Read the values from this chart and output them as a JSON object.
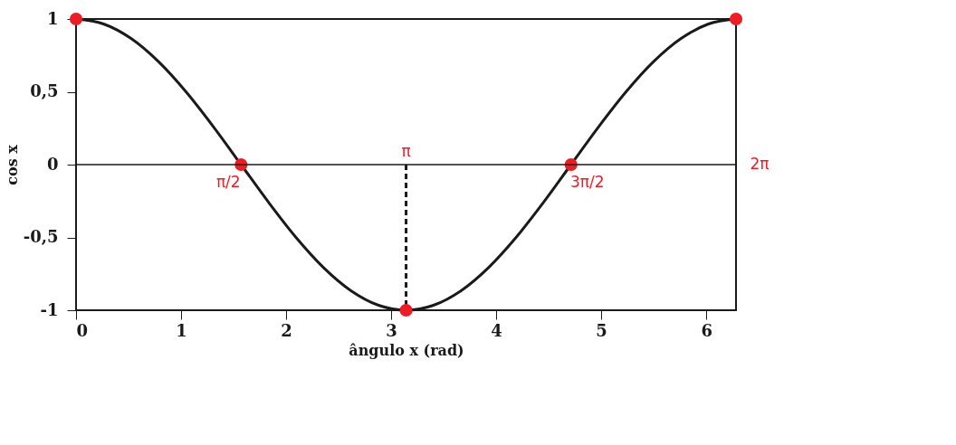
{
  "chart_data": {
    "type": "line",
    "xlabel": "ângulo x (rad)",
    "ylabel": "cos x",
    "xlim": [
      0,
      6.283
    ],
    "xticks": [
      0,
      1,
      2,
      3,
      4,
      5,
      6
    ],
    "ylim": [
      -1,
      1
    ],
    "yticks": [
      -1,
      {
        "value": -0.5,
        "label": "-0,5"
      },
      0,
      {
        "value": 0.5,
        "label": "0,5"
      },
      1
    ],
    "grid": false,
    "series": [
      {
        "color": "#1a1a1a",
        "x": [
          0,
          0.262,
          0.524,
          0.785,
          1.047,
          1.309,
          1.571,
          1.833,
          2.094,
          2.356,
          2.618,
          2.88,
          3.142,
          3.403,
          3.665,
          3.927,
          4.189,
          4.451,
          4.712,
          4.974,
          5.236,
          5.498,
          5.76,
          6.021,
          6.283
        ],
        "values": [
          1,
          0.966,
          0.866,
          0.707,
          0.5,
          0.259,
          0,
          -0.259,
          -0.5,
          -0.707,
          -0.866,
          -0.966,
          -1,
          -0.966,
          -0.866,
          -0.707,
          -0.5,
          -0.259,
          0,
          0.259,
          0.5,
          0.707,
          0.866,
          0.966,
          1
        ]
      },
      {
        "type": "line",
        "color": "#1a1a1a",
        "line_style": "dashed",
        "x": [
          3.142,
          3.142
        ],
        "values": [
          0,
          -1
        ]
      },
      {
        "type": "scatter",
        "color": "#ee1c25",
        "marker": "circle",
        "x": [
          0,
          1.571,
          3.142,
          4.712,
          6.283
        ],
        "values": [
          1,
          0,
          -1,
          0,
          1
        ]
      }
    ],
    "ref_lines": [
      {
        "axis": "y",
        "value": 0,
        "color": "#1a1a1a"
      }
    ],
    "annotations": [
      {
        "text": "π/2",
        "x": 1.571,
        "y": 0
      },
      {
        "text": "π",
        "x": 3.142,
        "y": 0
      },
      {
        "text": "3π/2",
        "x": 4.712,
        "y": 0
      },
      {
        "text": "2π",
        "x": 6.283,
        "y": 0
      }
    ]
  }
}
